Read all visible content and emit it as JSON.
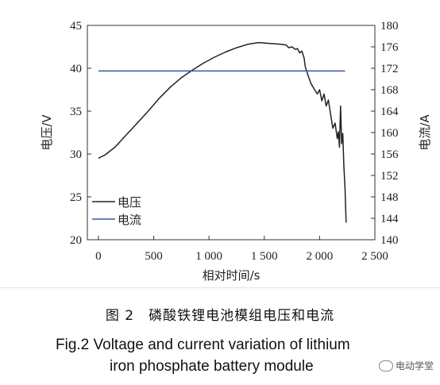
{
  "chart_data": {
    "type": "line",
    "xlabel": "相对时间/s",
    "ylabel_left": "电压/V",
    "ylabel_right": "电流/A",
    "x_ticks": [
      "0",
      "500",
      "1 000",
      "1 500",
      "2 000",
      "2 500"
    ],
    "y_left_ticks": [
      "20",
      "25",
      "30",
      "35",
      "40",
      "45"
    ],
    "y_right_ticks": [
      "140",
      "144",
      "148",
      "152",
      "156",
      "160",
      "164",
      "168",
      "172",
      "176",
      "180"
    ],
    "xlim": [
      -100,
      2500
    ],
    "ylim_left": [
      20,
      45
    ],
    "ylim_right": [
      140,
      180
    ],
    "legend": {
      "position": "bottom-left",
      "entries": [
        "电压",
        "电流"
      ]
    },
    "series": [
      {
        "name": "电压",
        "axis": "left",
        "color": "#222222",
        "x": [
          0,
          60,
          150,
          250,
          350,
          450,
          550,
          650,
          750,
          850,
          950,
          1050,
          1150,
          1250,
          1350,
          1450,
          1550,
          1650,
          1700,
          1720,
          1750,
          1780,
          1800,
          1820,
          1840,
          1860,
          1870,
          1880,
          1890,
          1900,
          1920,
          1950,
          1980,
          2000,
          2020,
          2040,
          2060,
          2080,
          2100,
          2120,
          2140,
          2160,
          2170,
          2180,
          2190,
          2200,
          2210,
          2220,
          2230,
          2240
        ],
        "y": [
          29.5,
          29.9,
          30.8,
          32.2,
          33.6,
          35.0,
          36.5,
          37.8,
          38.9,
          39.8,
          40.6,
          41.3,
          41.9,
          42.4,
          42.8,
          43.0,
          42.9,
          42.8,
          42.7,
          42.4,
          42.5,
          42.2,
          42.3,
          41.8,
          42.0,
          41.2,
          40.2,
          39.8,
          39.4,
          39.0,
          38.3,
          37.6,
          37.0,
          37.5,
          36.2,
          37.0,
          35.6,
          36.3,
          34.6,
          33.0,
          33.6,
          31.8,
          32.6,
          30.8,
          35.6,
          31.2,
          32.4,
          28.5,
          26.0,
          22.0
        ]
      },
      {
        "name": "电流",
        "axis": "right",
        "color": "#3c55a5",
        "x": [
          0,
          2230
        ],
        "y": [
          171.5,
          171.5
        ]
      }
    ]
  },
  "caption": {
    "cn": "图 2　磷酸铁锂电池模组电压和电流",
    "en_line1": "Fig.2    Voltage and current variation of lithium",
    "en_line2": "iron phosphate battery module"
  },
  "watermark": "电动学堂"
}
